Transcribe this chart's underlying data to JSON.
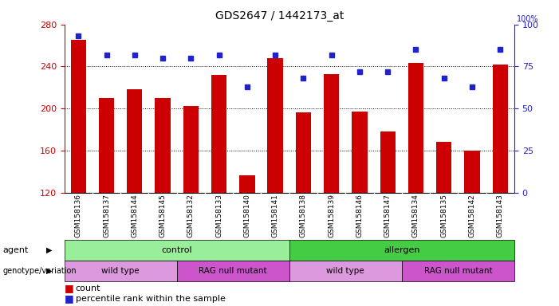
{
  "title": "GDS2647 / 1442173_at",
  "samples": [
    "GSM158136",
    "GSM158137",
    "GSM158144",
    "GSM158145",
    "GSM158132",
    "GSM158133",
    "GSM158140",
    "GSM158141",
    "GSM158138",
    "GSM158139",
    "GSM158146",
    "GSM158147",
    "GSM158134",
    "GSM158135",
    "GSM158142",
    "GSM158143"
  ],
  "counts": [
    265,
    210,
    218,
    210,
    202,
    232,
    136,
    248,
    196,
    233,
    197,
    178,
    243,
    168,
    160,
    242
  ],
  "percentile_ranks": [
    93,
    82,
    82,
    80,
    80,
    82,
    63,
    82,
    68,
    82,
    72,
    72,
    85,
    68,
    63,
    85
  ],
  "ylim_left": [
    120,
    280
  ],
  "ylim_right": [
    0,
    100
  ],
  "yticks_left": [
    120,
    160,
    200,
    240,
    280
  ],
  "yticks_right": [
    0,
    25,
    50,
    75,
    100
  ],
  "bar_color": "#cc0000",
  "dot_color": "#2222cc",
  "bar_width": 0.55,
  "agent_groups": [
    {
      "label": "control",
      "start": 0,
      "end": 8,
      "color": "#99ee99"
    },
    {
      "label": "allergen",
      "start": 8,
      "end": 16,
      "color": "#44cc44"
    }
  ],
  "genotype_groups": [
    {
      "label": "wild type",
      "start": 0,
      "end": 4,
      "color": "#dd99dd"
    },
    {
      "label": "RAG null mutant",
      "start": 4,
      "end": 8,
      "color": "#cc55cc"
    },
    {
      "label": "wild type",
      "start": 8,
      "end": 12,
      "color": "#dd99dd"
    },
    {
      "label": "RAG null mutant",
      "start": 12,
      "end": 16,
      "color": "#cc55cc"
    }
  ],
  "agent_label": "agent",
  "genotype_label": "genotype/variation",
  "legend_count_label": "count",
  "legend_pct_label": "percentile rank within the sample",
  "background_color": "#ffffff",
  "tick_label_color_left": "#cc0000",
  "tick_label_color_right": "#2222cc",
  "xtick_bg_color": "#cccccc",
  "xtick_divider_color": "#ffffff"
}
